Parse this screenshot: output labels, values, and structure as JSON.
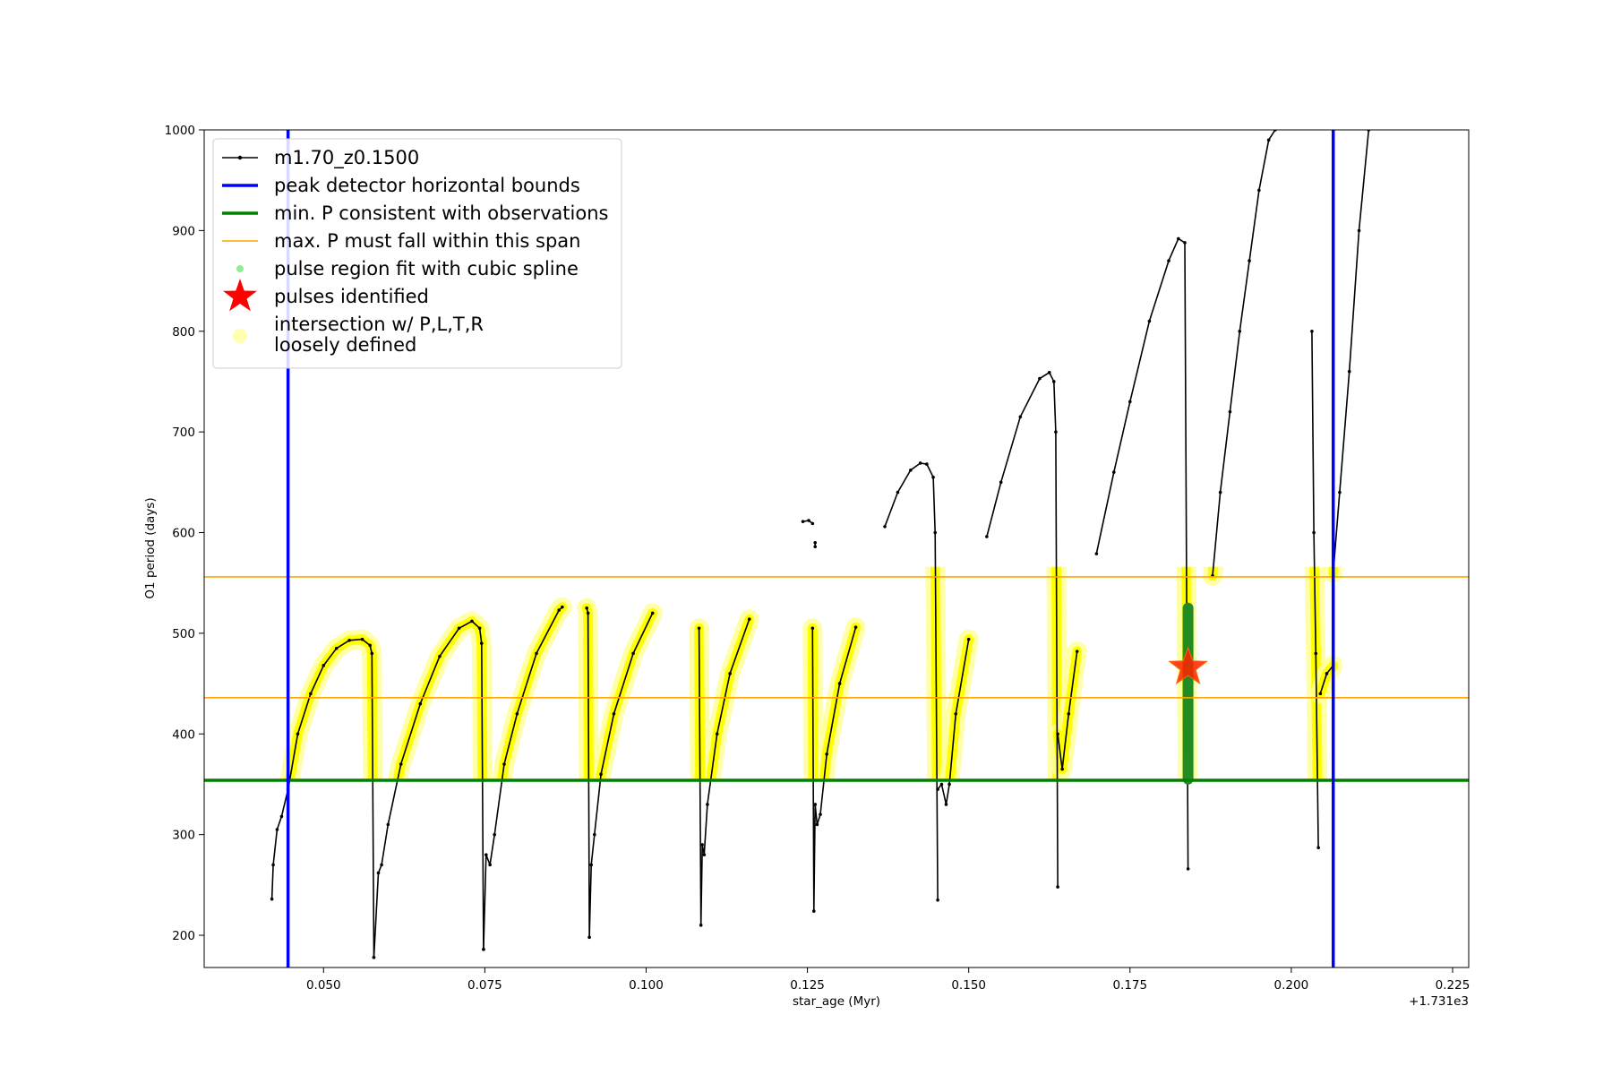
{
  "chart_data": {
    "type": "scatter",
    "xlabel": "star_age (Myr)",
    "ylabel": "O1 period (days)",
    "x_offset_label": "+1.731e3",
    "xlim": [
      0.0315,
      0.2275
    ],
    "ylim": [
      168,
      1000
    ],
    "xticks": [
      0.05,
      0.075,
      0.1,
      0.125,
      0.15,
      0.175,
      0.2,
      0.225
    ],
    "xtick_labels": [
      "0.050",
      "0.075",
      "0.100",
      "0.125",
      "0.150",
      "0.175",
      "0.200",
      "0.225"
    ],
    "yticks": [
      200,
      300,
      400,
      500,
      600,
      700,
      800,
      900,
      1000
    ],
    "ytick_labels": [
      "200",
      "300",
      "400",
      "500",
      "600",
      "700",
      "800",
      "900",
      "1000"
    ],
    "legend": {
      "position": "upper-left",
      "entries": [
        {
          "label": "m1.70_z0.1500",
          "style": "line-marker",
          "color": "#000000"
        },
        {
          "label": "peak detector horizontal bounds",
          "style": "thick-line",
          "color": "#0000ff"
        },
        {
          "label": "min. P consistent with observations",
          "style": "thick-line",
          "color": "#008000"
        },
        {
          "label": "max. P must fall within this span",
          "style": "thin-line",
          "color": "#ffa500"
        },
        {
          "label": "pulse region fit with cubic spline",
          "style": "dot",
          "color": "#90ee90"
        },
        {
          "label": "pulses identified",
          "style": "star",
          "color": "#ff0000"
        },
        {
          "label": "intersection w/ P,L,T,R\nloosely defined",
          "style": "halo",
          "color": "#ffff99"
        }
      ]
    },
    "reference_lines": {
      "peak_detector_bounds_x": [
        0.0445,
        0.2065
      ],
      "min_period_y": 354,
      "max_period_span_y": [
        436,
        556
      ]
    },
    "series": [
      {
        "name": "m1.70_z0.1500",
        "color": "#000000",
        "segments": [
          {
            "x": [
              0.042,
              0.0422,
              0.0428,
              0.0435,
              0.0445,
              0.046,
              0.048,
              0.05,
              0.052,
              0.054,
              0.056,
              0.0572,
              0.0575,
              0.0578
            ],
            "y": [
              236,
              270,
              305,
              318,
              345,
              400,
              440,
              468,
              485,
              493,
              494,
              488,
              480,
              178
            ]
          },
          {
            "x": [
              0.0578,
              0.0585,
              0.059,
              0.06,
              0.062,
              0.065,
              0.068,
              0.071,
              0.073,
              0.0742,
              0.0745,
              0.0748
            ],
            "y": [
              178,
              262,
              270,
              310,
              370,
              430,
              477,
              505,
              512,
              505,
              490,
              186
            ]
          },
          {
            "x": [
              0.0748,
              0.0752,
              0.0758,
              0.0765,
              0.078,
              0.08,
              0.083,
              0.0865,
              0.087
            ],
            "y": [
              186,
              280,
              270,
              300,
              370,
              420,
              480,
              523,
              526
            ]
          },
          {
            "x": [
              0.0908,
              0.091,
              0.0912,
              0.0915,
              0.092,
              0.093,
              0.095,
              0.098,
              0.101
            ],
            "y": [
              525,
              520,
              198,
              270,
              300,
              360,
              420,
              480,
              520
            ]
          },
          {
            "x": [
              0.1082,
              0.1085,
              0.1087,
              0.109,
              0.1095,
              0.111,
              0.113,
              0.116
            ],
            "y": [
              505,
              210,
              290,
              280,
              330,
              400,
              460,
              514
            ]
          },
          {
            "x": [
              0.1243,
              0.1252,
              0.1258
            ],
            "y": [
              611,
              612,
              609
            ]
          },
          {
            "x": [
              0.1262,
              0.1262
            ],
            "y": [
              590,
              586
            ]
          },
          {
            "x": [
              0.1258,
              0.126,
              0.1262,
              0.1265,
              0.127,
              0.128,
              0.13,
              0.1325
            ],
            "y": [
              505,
              224,
              330,
              310,
              320,
              380,
              450,
              506
            ]
          },
          {
            "x": [
              0.137,
              0.139,
              0.141,
              0.1425,
              0.1435,
              0.1445,
              0.1448,
              0.1452
            ],
            "y": [
              606,
              640,
              662,
              669,
              668,
              655,
              600,
              235
            ]
          },
          {
            "x": [
              0.1452,
              0.1458,
              0.1465,
              0.147,
              0.148,
              0.15
            ],
            "y": [
              345,
              350,
              330,
              350,
              420,
              494
            ]
          },
          {
            "x": [
              0.1528,
              0.155,
              0.158,
              0.161,
              0.1625,
              0.1632,
              0.1635,
              0.1638
            ],
            "y": [
              596,
              650,
              715,
              753,
              759,
              750,
              700,
              248
            ]
          },
          {
            "x": [
              0.1638,
              0.1645,
              0.1655,
              0.1668
            ],
            "y": [
              400,
              365,
              420,
              482
            ]
          },
          {
            "x": [
              0.1698,
              0.1725,
              0.175,
              0.178,
              0.181,
              0.1825,
              0.1835,
              0.184
            ],
            "y": [
              579,
              660,
              730,
              810,
              870,
              892,
              888,
              266
            ]
          },
          {
            "x": [
              0.1878,
              0.189,
              0.1905,
              0.192,
              0.1935,
              0.195,
              0.1965,
              0.1975
            ],
            "y": [
              557,
              640,
              720,
              800,
              870,
              940,
              990,
              1000
            ]
          },
          {
            "x": [
              0.2032,
              0.2035,
              0.2038,
              0.2042
            ],
            "y": [
              800,
              600,
              480,
              287
            ]
          },
          {
            "x": [
              0.2045,
              0.2055,
              0.2065
            ],
            "y": [
              440,
              460,
              468
            ]
          },
          {
            "x": [
              0.2065,
              0.2075,
              0.209,
              0.2105,
              0.212
            ],
            "y": [
              560,
              640,
              760,
              900,
              1000
            ]
          }
        ]
      },
      {
        "name": "pulse region fit with cubic spline",
        "color": "#228b22",
        "segments": [
          {
            "x": [
              0.184,
              0.184,
              0.184,
              0.184
            ],
            "y": [
              525,
              495,
              420,
              355
            ]
          }
        ]
      },
      {
        "name": "pulses identified",
        "color": "#ff0000",
        "points": [
          {
            "x": 0.184,
            "y": 466
          }
        ]
      }
    ]
  }
}
